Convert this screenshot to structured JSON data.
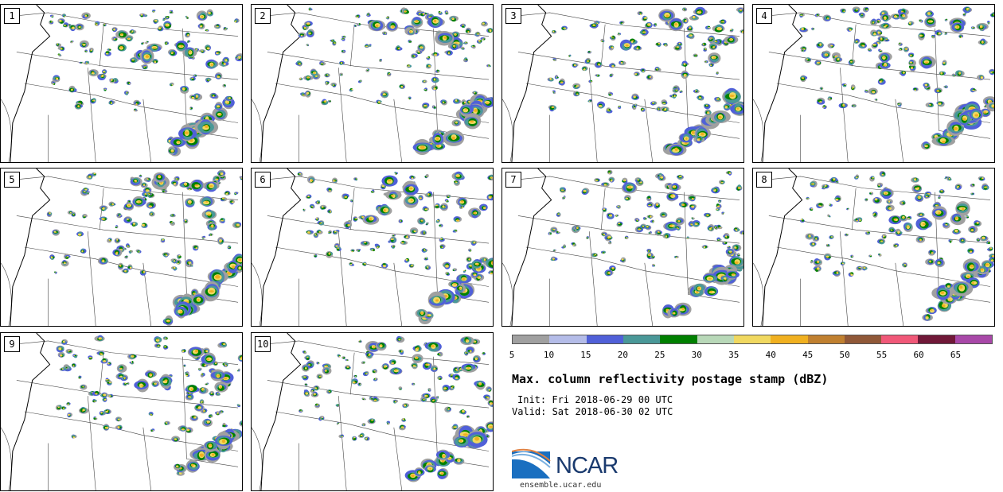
{
  "panels": [
    "1",
    "2",
    "3",
    "4",
    "5",
    "6",
    "7",
    "8",
    "9",
    "10"
  ],
  "colorbar": {
    "colors": [
      "#a0a0a0",
      "#b4bce8",
      "#5060d8",
      "#4a9898",
      "#008000",
      "#b8d8b8",
      "#f0d860",
      "#f0b020",
      "#c08030",
      "#905838",
      "#f05878",
      "#701838",
      "#a848a8"
    ],
    "ticks": [
      "5",
      "10",
      "15",
      "20",
      "25",
      "30",
      "35",
      "40",
      "45",
      "50",
      "55",
      "60",
      "65"
    ]
  },
  "title": "Max. column reflectivity postage stamp (dBZ)",
  "init": "Init: Fri 2018-06-29 00 UTC",
  "valid": "Valid: Sat 2018-06-30 02 UTC",
  "logo": {
    "text": "NCAR",
    "site": "ensemble.ucar.edu"
  }
}
